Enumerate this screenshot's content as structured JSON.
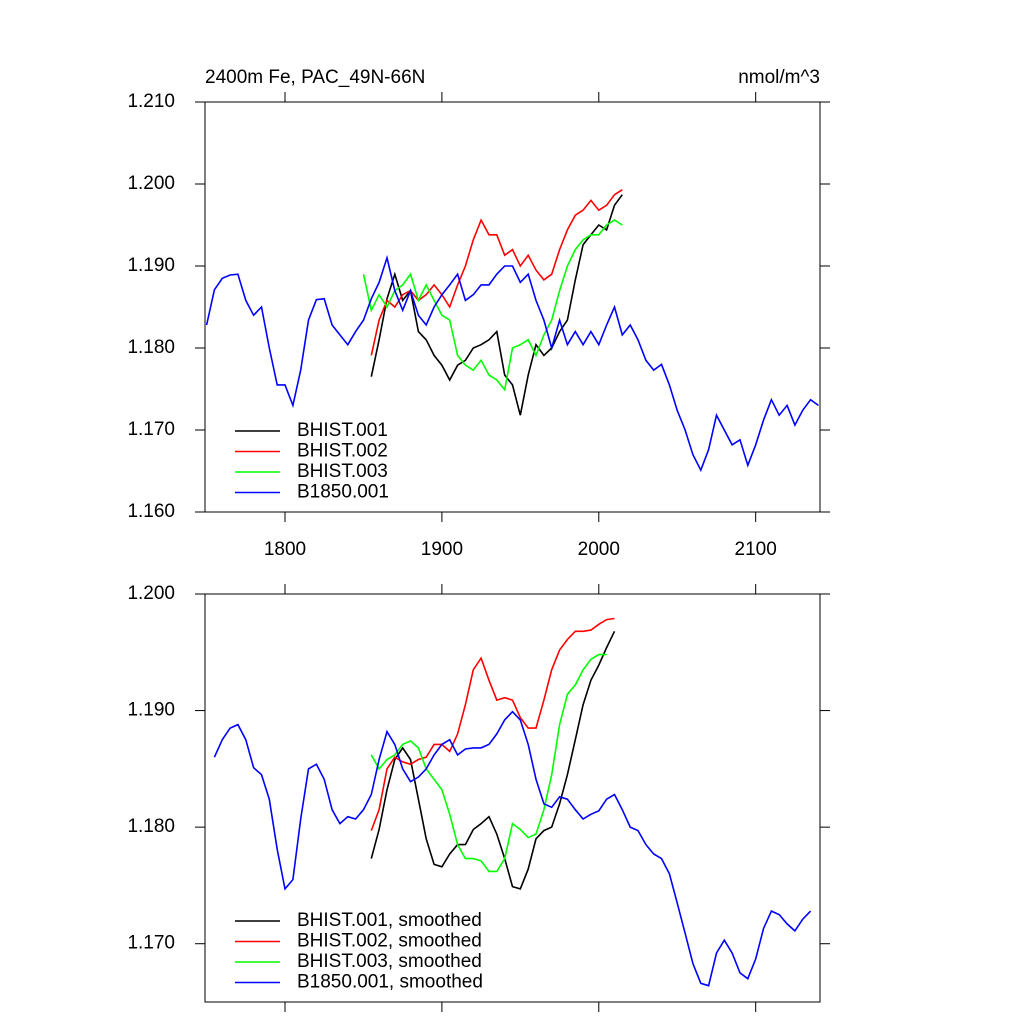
{
  "chart_data": [
    {
      "type": "line",
      "title": "2400m Fe, PAC_49N-66N",
      "units": "nmol/m^3",
      "x": [
        1750,
        1755,
        1760,
        1765,
        1770,
        1775,
        1780,
        1785,
        1790,
        1795,
        1800,
        1805,
        1810,
        1815,
        1820,
        1825,
        1830,
        1835,
        1840,
        1845,
        1850,
        1855,
        1860,
        1865,
        1870,
        1875,
        1880,
        1885,
        1890,
        1895,
        1900,
        1905,
        1910,
        1915,
        1920,
        1925,
        1930,
        1935,
        1940,
        1945,
        1950,
        1955,
        1960,
        1965,
        1970,
        1975,
        1980,
        1985,
        1990,
        1995,
        2000,
        2005,
        2010,
        2015,
        2020,
        2025,
        2030,
        2035,
        2040,
        2045,
        2050,
        2055,
        2060,
        2065,
        2070,
        2075,
        2080,
        2085,
        2090,
        2095,
        2100,
        2105,
        2110,
        2115,
        2120,
        2125,
        2130,
        2135,
        2140
      ],
      "xlim": [
        1749,
        2141
      ],
      "xticks": [
        1800,
        1900,
        2000,
        2100
      ],
      "ylim": [
        1.16,
        1.21
      ],
      "yticks": [
        {
          "value": 1.16,
          "label": "1.160"
        },
        {
          "value": 1.17,
          "label": "1.170"
        },
        {
          "value": 1.18,
          "label": "1.180"
        },
        {
          "value": 1.19,
          "label": "1.190"
        },
        {
          "value": 1.2,
          "label": "1.200"
        },
        {
          "value": 1.21,
          "label": "1.210"
        }
      ],
      "legend": "lower left",
      "series": [
        {
          "name": "BHIST.001",
          "color": "#000000",
          "values": [
            null,
            null,
            null,
            null,
            null,
            null,
            null,
            null,
            null,
            null,
            null,
            null,
            null,
            null,
            null,
            null,
            null,
            null,
            null,
            null,
            null,
            1.1765,
            1.181,
            1.186,
            1.189,
            1.1858,
            1.187,
            1.182,
            1.181,
            1.1791,
            1.1779,
            1.1761,
            1.1779,
            1.1785,
            1.18,
            1.1804,
            1.181,
            1.182,
            1.1767,
            1.1755,
            1.1718,
            1.1767,
            1.1804,
            1.1791,
            1.18,
            1.182,
            1.1834,
            1.1883,
            1.1926,
            1.1938,
            1.195,
            1.1944,
            1.1974,
            1.1987,
            null,
            null,
            null,
            null,
            null,
            null,
            null,
            null,
            null,
            null,
            null,
            null,
            null,
            null,
            null,
            null,
            null,
            null,
            null,
            null,
            null,
            null,
            null,
            null,
            null
          ]
        },
        {
          "name": "BHIST.002",
          "color": "#ff0000",
          "values": [
            null,
            null,
            null,
            null,
            null,
            null,
            null,
            null,
            null,
            null,
            null,
            null,
            null,
            null,
            null,
            null,
            null,
            null,
            null,
            null,
            null,
            1.1791,
            1.1834,
            1.1858,
            1.185,
            1.1865,
            1.187,
            1.1858,
            1.1865,
            1.1877,
            1.1865,
            1.185,
            1.1877,
            1.19,
            1.1932,
            1.1956,
            1.1938,
            1.1938,
            1.1913,
            1.192,
            1.19,
            1.1913,
            1.1895,
            1.1883,
            1.189,
            1.192,
            1.1944,
            1.1962,
            1.1968,
            1.198,
            1.1968,
            1.1974,
            1.1987,
            1.1993,
            null,
            null,
            null,
            null,
            null,
            null,
            null,
            null,
            null,
            null,
            null,
            null,
            null,
            null,
            null,
            null,
            null,
            null,
            null,
            null,
            null,
            null,
            null,
            null,
            null
          ]
        },
        {
          "name": "BHIST.003",
          "color": "#00ff00",
          "values": [
            null,
            null,
            null,
            null,
            null,
            null,
            null,
            null,
            null,
            null,
            null,
            null,
            null,
            null,
            null,
            null,
            null,
            null,
            null,
            null,
            1.189,
            1.1846,
            1.1865,
            1.185,
            1.187,
            1.1877,
            1.189,
            1.1858,
            1.1877,
            1.1858,
            1.184,
            1.1834,
            1.1791,
            1.1779,
            1.1773,
            1.1785,
            1.1767,
            1.1761,
            1.1749,
            1.18,
            1.1804,
            1.181,
            1.1791,
            1.1816,
            1.1834,
            1.187,
            1.19,
            1.192,
            1.1932,
            1.1938,
            1.1938,
            1.195,
            1.1956,
            1.195,
            null,
            null,
            null,
            null,
            null,
            null,
            null,
            null,
            null,
            null,
            null,
            null,
            null,
            null,
            null,
            null,
            null,
            null,
            null,
            null,
            null,
            null,
            null,
            null,
            null
          ]
        },
        {
          "name": "B1850.001",
          "color": "#0000ff",
          "values": [
            1.1828,
            1.1871,
            1.1885,
            1.1889,
            1.189,
            1.1858,
            1.184,
            1.185,
            1.18,
            1.1755,
            1.1755,
            1.173,
            1.1773,
            1.1834,
            1.1859,
            1.186,
            1.1828,
            1.1816,
            1.1804,
            1.182,
            1.1834,
            1.186,
            1.188,
            1.191,
            1.187,
            1.1846,
            1.187,
            1.184,
            1.1828,
            1.185,
            1.1865,
            1.1877,
            1.189,
            1.1858,
            1.1865,
            1.1877,
            1.1877,
            1.189,
            1.19,
            1.19,
            1.188,
            1.189,
            1.1858,
            1.1834,
            1.18,
            1.1834,
            1.1804,
            1.182,
            1.1804,
            1.182,
            1.1804,
            1.1828,
            1.185,
            1.1816,
            1.1828,
            1.181,
            1.1785,
            1.1773,
            1.178,
            1.1755,
            1.1724,
            1.17,
            1.167,
            1.1651,
            1.1676,
            1.1718,
            1.17,
            1.1682,
            1.1688,
            1.1657,
            1.1682,
            1.1712,
            1.1737,
            1.1718,
            1.173,
            1.1706,
            1.1724,
            1.1737,
            1.173
          ]
        }
      ]
    },
    {
      "type": "line",
      "x": [
        1750,
        1755,
        1760,
        1765,
        1770,
        1775,
        1780,
        1785,
        1790,
        1795,
        1800,
        1805,
        1810,
        1815,
        1820,
        1825,
        1830,
        1835,
        1840,
        1845,
        1850,
        1855,
        1860,
        1865,
        1870,
        1875,
        1880,
        1885,
        1890,
        1895,
        1900,
        1905,
        1910,
        1915,
        1920,
        1925,
        1930,
        1935,
        1940,
        1945,
        1950,
        1955,
        1960,
        1965,
        1970,
        1975,
        1980,
        1985,
        1990,
        1995,
        2000,
        2005,
        2010,
        2015,
        2020,
        2025,
        2030,
        2035,
        2040,
        2045,
        2050,
        2055,
        2060,
        2065,
        2070,
        2075,
        2080,
        2085,
        2090,
        2095,
        2100,
        2105,
        2110,
        2115,
        2120,
        2125,
        2130,
        2135,
        2140
      ],
      "xlim": [
        1749,
        2141
      ],
      "xticks": [
        1800,
        1900,
        2000,
        2100
      ],
      "xtick_labels": false,
      "ylim": [
        1.165,
        1.2
      ],
      "yticks": [
        {
          "value": 1.17,
          "label": "1.170"
        },
        {
          "value": 1.18,
          "label": "1.180"
        },
        {
          "value": 1.19,
          "label": "1.190"
        },
        {
          "value": 1.2,
          "label": "1.200"
        }
      ],
      "legend": "lower left",
      "series": [
        {
          "name": "BHIST.001, smoothed",
          "color": "#000000",
          "values": [
            null,
            null,
            null,
            null,
            null,
            null,
            null,
            null,
            null,
            null,
            null,
            null,
            null,
            null,
            null,
            null,
            null,
            null,
            null,
            null,
            null,
            1.1773,
            1.1798,
            1.1832,
            1.1858,
            1.1868,
            1.1858,
            1.1824,
            1.179,
            1.1768,
            1.1766,
            1.1777,
            1.1785,
            1.1785,
            1.1798,
            1.1803,
            1.1809,
            1.1794,
            1.1773,
            1.1749,
            1.1747,
            1.1764,
            1.179,
            1.1797,
            1.18,
            1.182,
            1.1845,
            1.1875,
            1.1905,
            1.1926,
            1.1939,
            1.1954,
            1.1968,
            null,
            null,
            null,
            null,
            null,
            null,
            null,
            null,
            null,
            null,
            null,
            null,
            null,
            null,
            null,
            null,
            null,
            null,
            null,
            null,
            null,
            null,
            null,
            null,
            null,
            null
          ]
        },
        {
          "name": "BHIST.002, smoothed",
          "color": "#ff0000",
          "values": [
            null,
            null,
            null,
            null,
            null,
            null,
            null,
            null,
            null,
            null,
            null,
            null,
            null,
            null,
            null,
            null,
            null,
            null,
            null,
            null,
            null,
            1.1797,
            1.1815,
            1.185,
            1.186,
            1.1856,
            1.1854,
            1.1858,
            1.186,
            1.1871,
            1.1871,
            1.1865,
            1.188,
            1.1905,
            1.1935,
            1.1945,
            1.1926,
            1.1909,
            1.1911,
            1.1909,
            1.1894,
            1.1885,
            1.1885,
            1.1909,
            1.1935,
            1.1952,
            1.1961,
            1.1968,
            1.1968,
            1.1969,
            1.1974,
            1.1978,
            1.1979,
            null,
            null,
            null,
            null,
            null,
            null,
            null,
            null,
            null,
            null,
            null,
            null,
            null,
            null,
            null,
            null,
            null,
            null,
            null,
            null,
            null,
            null,
            null,
            null,
            null,
            null
          ]
        },
        {
          "name": "BHIST.003, smoothed",
          "color": "#00ff00",
          "values": [
            null,
            null,
            null,
            null,
            null,
            null,
            null,
            null,
            null,
            null,
            null,
            null,
            null,
            null,
            null,
            null,
            null,
            null,
            null,
            null,
            null,
            1.1862,
            1.185,
            1.1858,
            1.1862,
            1.1871,
            1.1874,
            1.1868,
            1.185,
            1.1841,
            1.1832,
            1.1811,
            1.1785,
            1.1773,
            1.1773,
            1.1771,
            1.1762,
            1.1762,
            1.1773,
            1.1803,
            1.1798,
            1.1791,
            1.1794,
            1.1815,
            1.1845,
            1.1888,
            1.1914,
            1.1922,
            1.1935,
            1.1944,
            1.1948,
            1.1948,
            null,
            null,
            null,
            null,
            null,
            null,
            null,
            null,
            null,
            null,
            null,
            null,
            null,
            null,
            null,
            null,
            null,
            null,
            null,
            null,
            null,
            null,
            null,
            null,
            null,
            null,
            null
          ]
        },
        {
          "name": "B1850.001, smoothed",
          "color": "#0000ff",
          "values": [
            null,
            1.186,
            1.1875,
            1.1885,
            1.1888,
            1.1875,
            1.1851,
            1.1845,
            1.1824,
            1.1781,
            1.1747,
            1.1755,
            1.1807,
            1.185,
            1.1854,
            1.1841,
            1.1815,
            1.1803,
            1.1809,
            1.1807,
            1.1815,
            1.1828,
            1.1858,
            1.1882,
            1.1871,
            1.185,
            1.1839,
            1.1843,
            1.185,
            1.1862,
            1.1871,
            1.1875,
            1.1862,
            1.1867,
            1.1868,
            1.1868,
            1.1871,
            1.188,
            1.1892,
            1.1899,
            1.1892,
            1.1871,
            1.1841,
            1.182,
            1.1817,
            1.1826,
            1.1824,
            1.1815,
            1.1807,
            1.1811,
            1.1814,
            1.1824,
            1.1828,
            1.1815,
            1.18,
            1.1797,
            1.1785,
            1.1777,
            1.1773,
            1.176,
            1.1735,
            1.1709,
            1.1683,
            1.1666,
            1.1664,
            1.1692,
            1.1703,
            1.1692,
            1.1675,
            1.167,
            1.1687,
            1.1713,
            1.1728,
            1.1725,
            1.1717,
            1.1711,
            1.1721,
            1.1728,
            null
          ]
        }
      ]
    }
  ]
}
